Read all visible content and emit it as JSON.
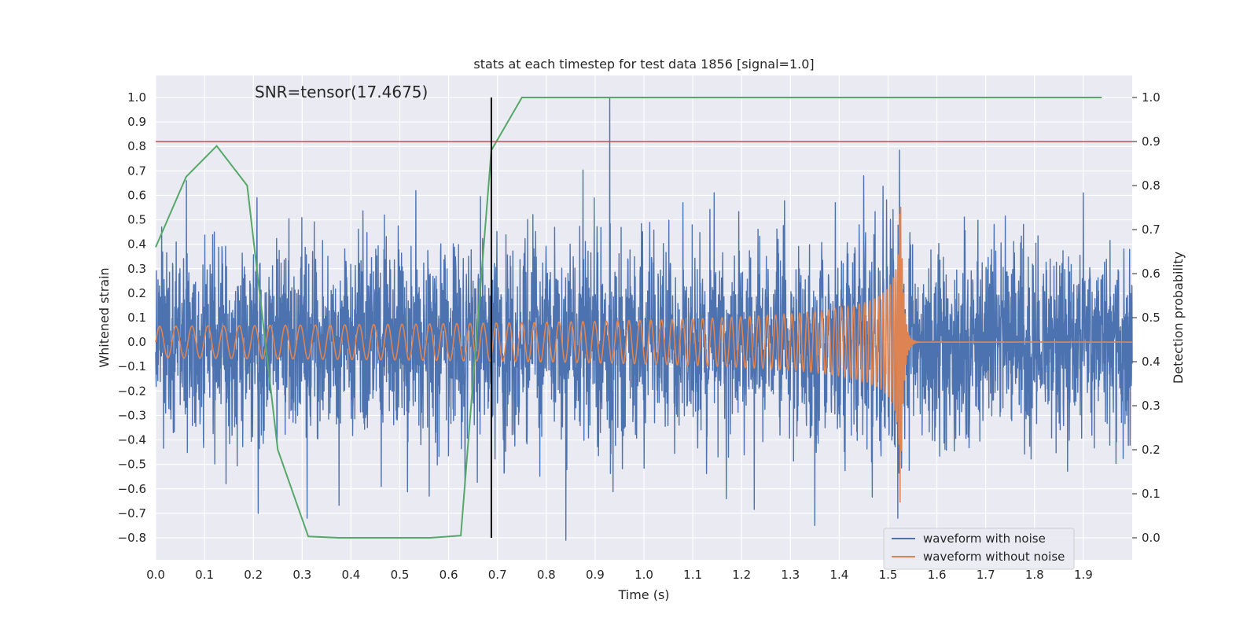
{
  "chart_data": {
    "type": "line",
    "title": "stats at each timestep for test data 1856 [signal=1.0]",
    "xlabel": "Time (s)",
    "ylabel": "Whitened strain",
    "y2label": "Detection probability",
    "annotation": "SNR=tensor(17.4675)",
    "xlim": [
      0.0,
      2.0
    ],
    "ylim": [
      -0.89,
      1.09
    ],
    "y2lim": [
      -0.05,
      1.05
    ],
    "xticks": [
      "0.0",
      "0.1",
      "0.2",
      "0.3",
      "0.4",
      "0.5",
      "0.6",
      "0.7",
      "0.8",
      "0.9",
      "1.0",
      "1.1",
      "1.2",
      "1.3",
      "1.4",
      "1.5",
      "1.6",
      "1.7",
      "1.8",
      "1.9"
    ],
    "yticks": [
      "-0.8",
      "-0.7",
      "-0.6",
      "-0.5",
      "-0.4",
      "-0.3",
      "-0.2",
      "-0.1",
      "0.0",
      "0.1",
      "0.2",
      "0.3",
      "0.4",
      "0.5",
      "0.6",
      "0.7",
      "0.8",
      "0.9",
      "1.0"
    ],
    "y2ticks": [
      "0.0",
      "0.1",
      "0.2",
      "0.3",
      "0.4",
      "0.5",
      "0.6",
      "0.7",
      "0.8",
      "0.9",
      "1.0"
    ],
    "grid": true,
    "legend_position": "lower-right",
    "series": [
      {
        "name": "waveform with noise",
        "color": "#4c72b0",
        "axis": "left",
        "style": "noise",
        "x_range": [
          0.0,
          2.0
        ],
        "amplitude_rms": 0.19,
        "peaks": [
          {
            "x": 0.063,
            "y": 0.66
          },
          {
            "x": 0.12,
            "y": 0.45
          },
          {
            "x": 0.21,
            "y": -0.7
          },
          {
            "x": 0.31,
            "y": -0.72
          },
          {
            "x": 0.56,
            "y": -0.63
          },
          {
            "x": 0.84,
            "y": -0.81
          },
          {
            "x": 0.93,
            "y": 1.0
          },
          {
            "x": 1.08,
            "y": 0.57
          },
          {
            "x": 1.35,
            "y": -0.75
          },
          {
            "x": 1.45,
            "y": 0.68
          },
          {
            "x": 1.52,
            "y": 0.85
          },
          {
            "x": 1.52,
            "y": -0.72
          },
          {
            "x": 1.9,
            "y": 0.61
          }
        ]
      },
      {
        "name": "waveform without noise",
        "color": "#dd8452",
        "axis": "left",
        "style": "chirp",
        "t_merger": 1.525,
        "amplitude_start": 0.065,
        "amplitude_peak": 0.66,
        "frequency_start_hz": 30
      },
      {
        "name": "",
        "color": "#55a868",
        "axis": "right",
        "x": [
          0.0,
          0.0625,
          0.125,
          0.1875,
          0.25,
          0.3125,
          0.375,
          0.4375,
          0.5,
          0.5625,
          0.625,
          0.6875,
          0.75,
          0.8125,
          0.875,
          0.9375,
          1.0,
          1.0625,
          1.125,
          1.1875,
          1.25,
          1.3125,
          1.375,
          1.4375,
          1.5,
          1.5625,
          1.625,
          1.6875,
          1.75,
          1.8125,
          1.875,
          1.9375
        ],
        "y": [
          0.66,
          0.82,
          0.89,
          0.8,
          0.2,
          0.003,
          0.0,
          0.0,
          0.0,
          0.0,
          0.005,
          0.88,
          1.0,
          1.0,
          1.0,
          1.0,
          1.0,
          1.0,
          1.0,
          1.0,
          1.0,
          1.0,
          1.0,
          1.0,
          1.0,
          1.0,
          1.0,
          1.0,
          1.0,
          1.0,
          1.0,
          1.0
        ]
      }
    ],
    "reference_lines": [
      {
        "orientation": "horizontal",
        "axis": "right",
        "value": 0.9,
        "color": "#c44e52"
      },
      {
        "orientation": "vertical",
        "value": 0.6875,
        "color": "#000000",
        "y_from": -0.8,
        "y_to": 1.0
      }
    ]
  }
}
